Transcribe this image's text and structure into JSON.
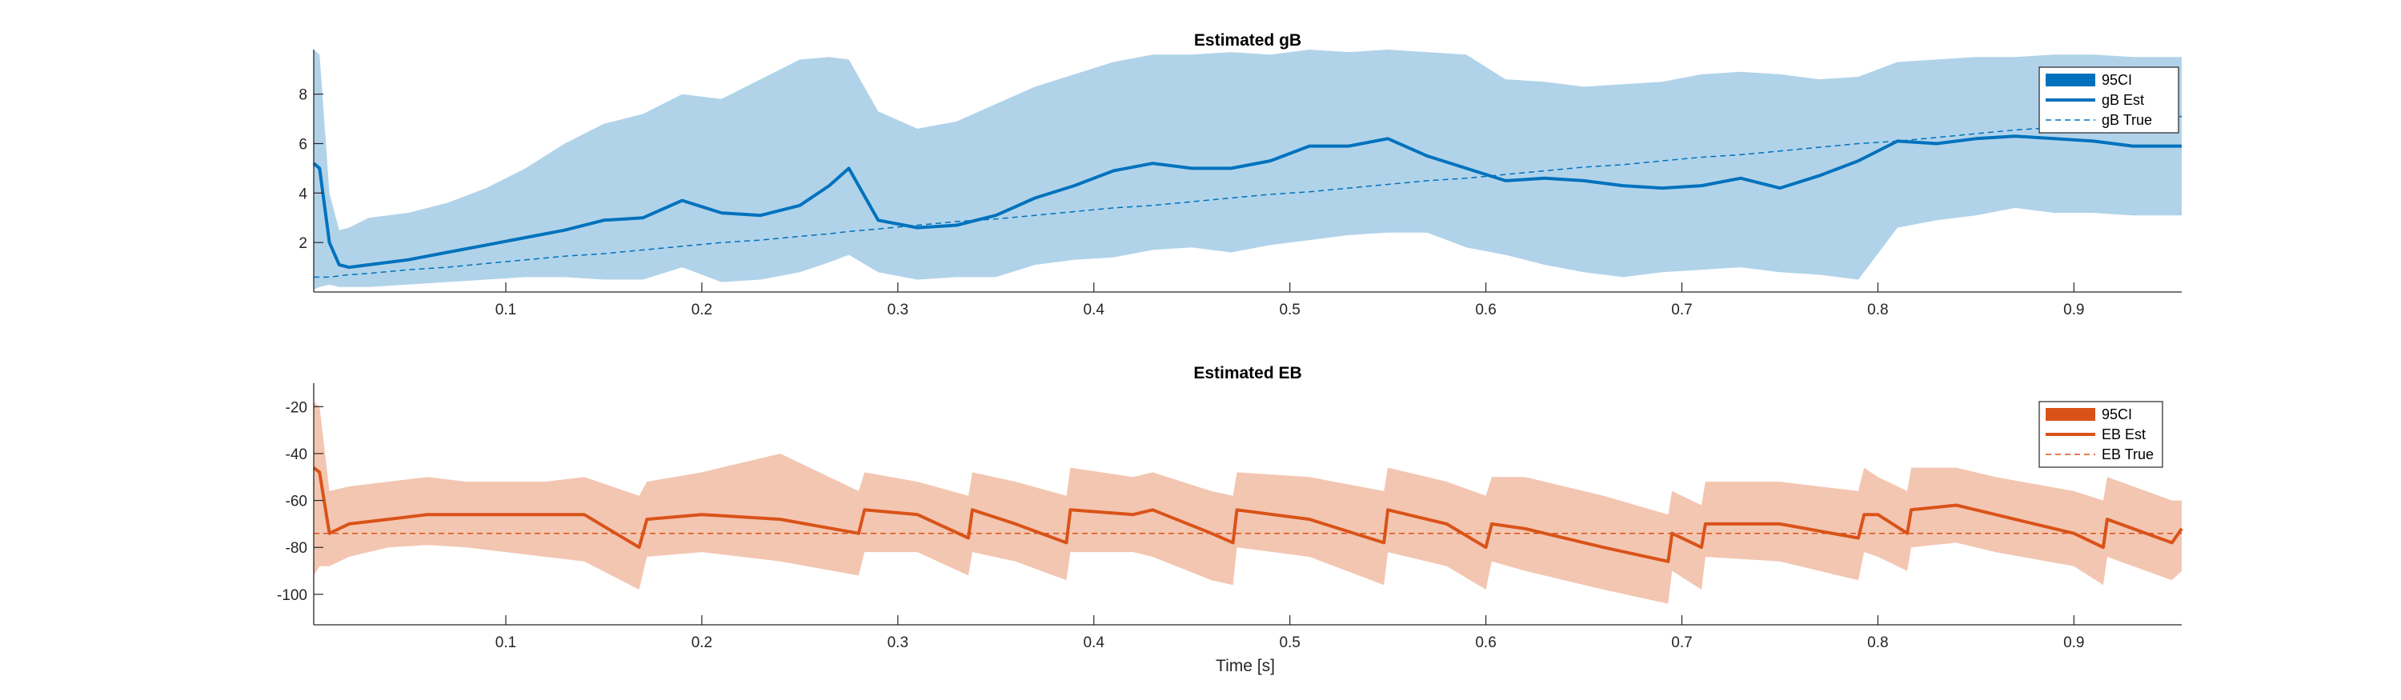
{
  "figure": {
    "xlabel": "Time [s]"
  },
  "chart_data": [
    {
      "type": "area",
      "title": "Estimated gB",
      "xlabel": "",
      "ylabel": "",
      "xlim": [
        0.002,
        0.955
      ],
      "ylim": [
        0,
        9.8
      ],
      "xticks": [
        0.1,
        0.2,
        0.3,
        0.4,
        0.5,
        0.6,
        0.7,
        0.8,
        0.9
      ],
      "xtick_labels": [
        "0.1",
        "0.2",
        "0.3",
        "0.4",
        "0.5",
        "0.6",
        "0.7",
        "0.8",
        "0.9"
      ],
      "yticks": [
        2,
        4,
        6,
        8
      ],
      "ytick_labels": [
        "2",
        "4",
        "6",
        "8"
      ],
      "grid": false,
      "legend_position": "top-right",
      "colors": {
        "line": "#0072BD",
        "band": "#B1D3EA"
      },
      "legend": [
        "95CI",
        "gB Est",
        "gB True"
      ],
      "x": [
        0.002,
        0.005,
        0.01,
        0.015,
        0.02,
        0.03,
        0.05,
        0.07,
        0.09,
        0.11,
        0.13,
        0.15,
        0.17,
        0.19,
        0.21,
        0.23,
        0.25,
        0.265,
        0.275,
        0.29,
        0.31,
        0.33,
        0.35,
        0.37,
        0.39,
        0.41,
        0.43,
        0.45,
        0.47,
        0.49,
        0.51,
        0.53,
        0.55,
        0.57,
        0.59,
        0.61,
        0.63,
        0.65,
        0.67,
        0.69,
        0.71,
        0.73,
        0.75,
        0.77,
        0.79,
        0.81,
        0.83,
        0.85,
        0.87,
        0.89,
        0.91,
        0.93,
        0.955
      ],
      "series": [
        {
          "name": "gB Est",
          "values": [
            5.2,
            5.0,
            2.0,
            1.1,
            1.0,
            1.1,
            1.3,
            1.6,
            1.9,
            2.2,
            2.5,
            2.9,
            3.0,
            3.7,
            3.2,
            3.1,
            3.5,
            4.3,
            5.0,
            2.9,
            2.6,
            2.7,
            3.1,
            3.8,
            4.3,
            4.9,
            5.2,
            5.0,
            5.0,
            5.3,
            5.9,
            5.9,
            6.2,
            5.5,
            5.0,
            4.5,
            4.6,
            4.5,
            4.3,
            4.2,
            4.3,
            4.6,
            4.2,
            4.7,
            5.3,
            6.1,
            6.0,
            6.2,
            6.3,
            6.2,
            6.1,
            5.9,
            5.9
          ]
        },
        {
          "name": "95CI",
          "lower": [
            0.1,
            0.2,
            0.3,
            0.2,
            0.2,
            0.2,
            0.3,
            0.4,
            0.5,
            0.6,
            0.6,
            0.5,
            0.5,
            1.0,
            0.4,
            0.5,
            0.8,
            1.2,
            1.5,
            0.8,
            0.5,
            0.6,
            0.6,
            1.1,
            1.3,
            1.4,
            1.7,
            1.8,
            1.6,
            1.9,
            2.1,
            2.3,
            2.4,
            2.4,
            1.8,
            1.5,
            1.1,
            0.8,
            0.6,
            0.8,
            0.9,
            1.0,
            0.8,
            0.7,
            0.5,
            2.6,
            2.9,
            3.1,
            3.4,
            3.2,
            3.2,
            3.1,
            3.1
          ],
          "upper": [
            9.8,
            9.6,
            4.0,
            2.5,
            2.6,
            3.0,
            3.2,
            3.6,
            4.2,
            5.0,
            6.0,
            6.8,
            7.2,
            8.0,
            7.8,
            8.6,
            9.4,
            9.5,
            9.4,
            7.3,
            6.6,
            6.9,
            7.6,
            8.3,
            8.8,
            9.3,
            9.6,
            9.6,
            9.7,
            9.6,
            9.8,
            9.7,
            9.8,
            9.7,
            9.6,
            8.6,
            8.5,
            8.3,
            8.4,
            8.5,
            8.8,
            8.9,
            8.8,
            8.6,
            8.7,
            9.3,
            9.4,
            9.5,
            9.5,
            9.6,
            9.6,
            9.5,
            9.5
          ]
        },
        {
          "name": "gB True",
          "values": [
            0.6,
            0.6,
            0.6,
            0.65,
            0.7,
            0.75,
            0.9,
            1.0,
            1.15,
            1.3,
            1.45,
            1.55,
            1.7,
            1.85,
            2.0,
            2.1,
            2.25,
            2.35,
            2.45,
            2.55,
            2.7,
            2.85,
            2.95,
            3.1,
            3.25,
            3.4,
            3.5,
            3.65,
            3.8,
            3.95,
            4.05,
            4.2,
            4.35,
            4.5,
            4.6,
            4.75,
            4.9,
            5.05,
            5.15,
            5.3,
            5.45,
            5.55,
            5.7,
            5.85,
            6.0,
            6.1,
            6.25,
            6.4,
            6.55,
            6.65,
            6.8,
            6.95,
            7.1
          ]
        }
      ]
    },
    {
      "type": "area",
      "title": "Estimated EB",
      "xlabel": "Time [s]",
      "ylabel": "",
      "xlim": [
        0.002,
        0.955
      ],
      "ylim": [
        -113,
        -10
      ],
      "xticks": [
        0.1,
        0.2,
        0.3,
        0.4,
        0.5,
        0.6,
        0.7,
        0.8,
        0.9
      ],
      "xtick_labels": [
        "0.1",
        "0.2",
        "0.3",
        "0.4",
        "0.5",
        "0.6",
        "0.7",
        "0.8",
        "0.9"
      ],
      "yticks": [
        -100,
        -80,
        -60,
        -40,
        -20
      ],
      "ytick_labels": [
        "-100",
        "-80",
        "-60",
        "-40",
        "-20"
      ],
      "grid": false,
      "legend_position": "top-right",
      "colors": {
        "line": "#D95319",
        "band": "#F3C6B1"
      },
      "legend": [
        "95CI",
        "EB Est",
        "EB True"
      ],
      "x": [
        0.002,
        0.005,
        0.01,
        0.02,
        0.04,
        0.06,
        0.08,
        0.1,
        0.12,
        0.14,
        0.168,
        0.172,
        0.2,
        0.24,
        0.28,
        0.283,
        0.31,
        0.336,
        0.338,
        0.36,
        0.386,
        0.388,
        0.42,
        0.43,
        0.46,
        0.471,
        0.473,
        0.51,
        0.548,
        0.55,
        0.58,
        0.6,
        0.603,
        0.62,
        0.66,
        0.693,
        0.695,
        0.71,
        0.712,
        0.75,
        0.79,
        0.793,
        0.8,
        0.815,
        0.817,
        0.84,
        0.86,
        0.9,
        0.915,
        0.917,
        0.95,
        0.955
      ],
      "series": [
        {
          "name": "EB Est",
          "values": [
            -46,
            -48,
            -74,
            -70,
            -68,
            -66,
            -66,
            -66,
            -66,
            -66,
            -80,
            -68,
            -66,
            -68,
            -74,
            -64,
            -66,
            -76,
            -64,
            -70,
            -78,
            -64,
            -66,
            -64,
            -74,
            -78,
            -64,
            -68,
            -78,
            -64,
            -70,
            -80,
            -70,
            -72,
            -80,
            -86,
            -74,
            -80,
            -70,
            -70,
            -76,
            -66,
            -66,
            -74,
            -64,
            -62,
            -66,
            -74,
            -80,
            -68,
            -78,
            -72
          ]
        },
        {
          "name": "95CI",
          "lower": [
            -92,
            -88,
            -88,
            -84,
            -80,
            -79,
            -80,
            -82,
            -84,
            -86,
            -98,
            -84,
            -82,
            -86,
            -92,
            -82,
            -82,
            -92,
            -82,
            -86,
            -94,
            -82,
            -82,
            -84,
            -94,
            -96,
            -80,
            -84,
            -96,
            -82,
            -88,
            -98,
            -86,
            -90,
            -98,
            -104,
            -90,
            -98,
            -84,
            -86,
            -94,
            -82,
            -84,
            -90,
            -80,
            -78,
            -82,
            -88,
            -96,
            -84,
            -94,
            -90
          ],
          "upper": [
            -18,
            -20,
            -56,
            -54,
            -52,
            -50,
            -52,
            -52,
            -52,
            -50,
            -58,
            -52,
            -48,
            -40,
            -56,
            -48,
            -52,
            -58,
            -48,
            -52,
            -58,
            -46,
            -50,
            -48,
            -56,
            -58,
            -48,
            -50,
            -56,
            -46,
            -52,
            -58,
            -50,
            -50,
            -58,
            -66,
            -56,
            -62,
            -52,
            -52,
            -56,
            -46,
            -50,
            -56,
            -46,
            -46,
            -50,
            -56,
            -60,
            -50,
            -60,
            -60
          ]
        },
        {
          "name": "EB True",
          "values": [
            -74,
            -74,
            -74,
            -74,
            -74,
            -74,
            -74,
            -74,
            -74,
            -74,
            -74,
            -74,
            -74,
            -74,
            -74,
            -74,
            -74,
            -74,
            -74,
            -74,
            -74,
            -74,
            -74,
            -74,
            -74,
            -74,
            -74,
            -74,
            -74,
            -74,
            -74,
            -74,
            -74,
            -74,
            -74,
            -74,
            -74,
            -74,
            -74,
            -74,
            -74,
            -74,
            -74,
            -74,
            -74,
            -74,
            -74,
            -74,
            -74,
            -74,
            -74,
            -74
          ]
        }
      ]
    }
  ]
}
